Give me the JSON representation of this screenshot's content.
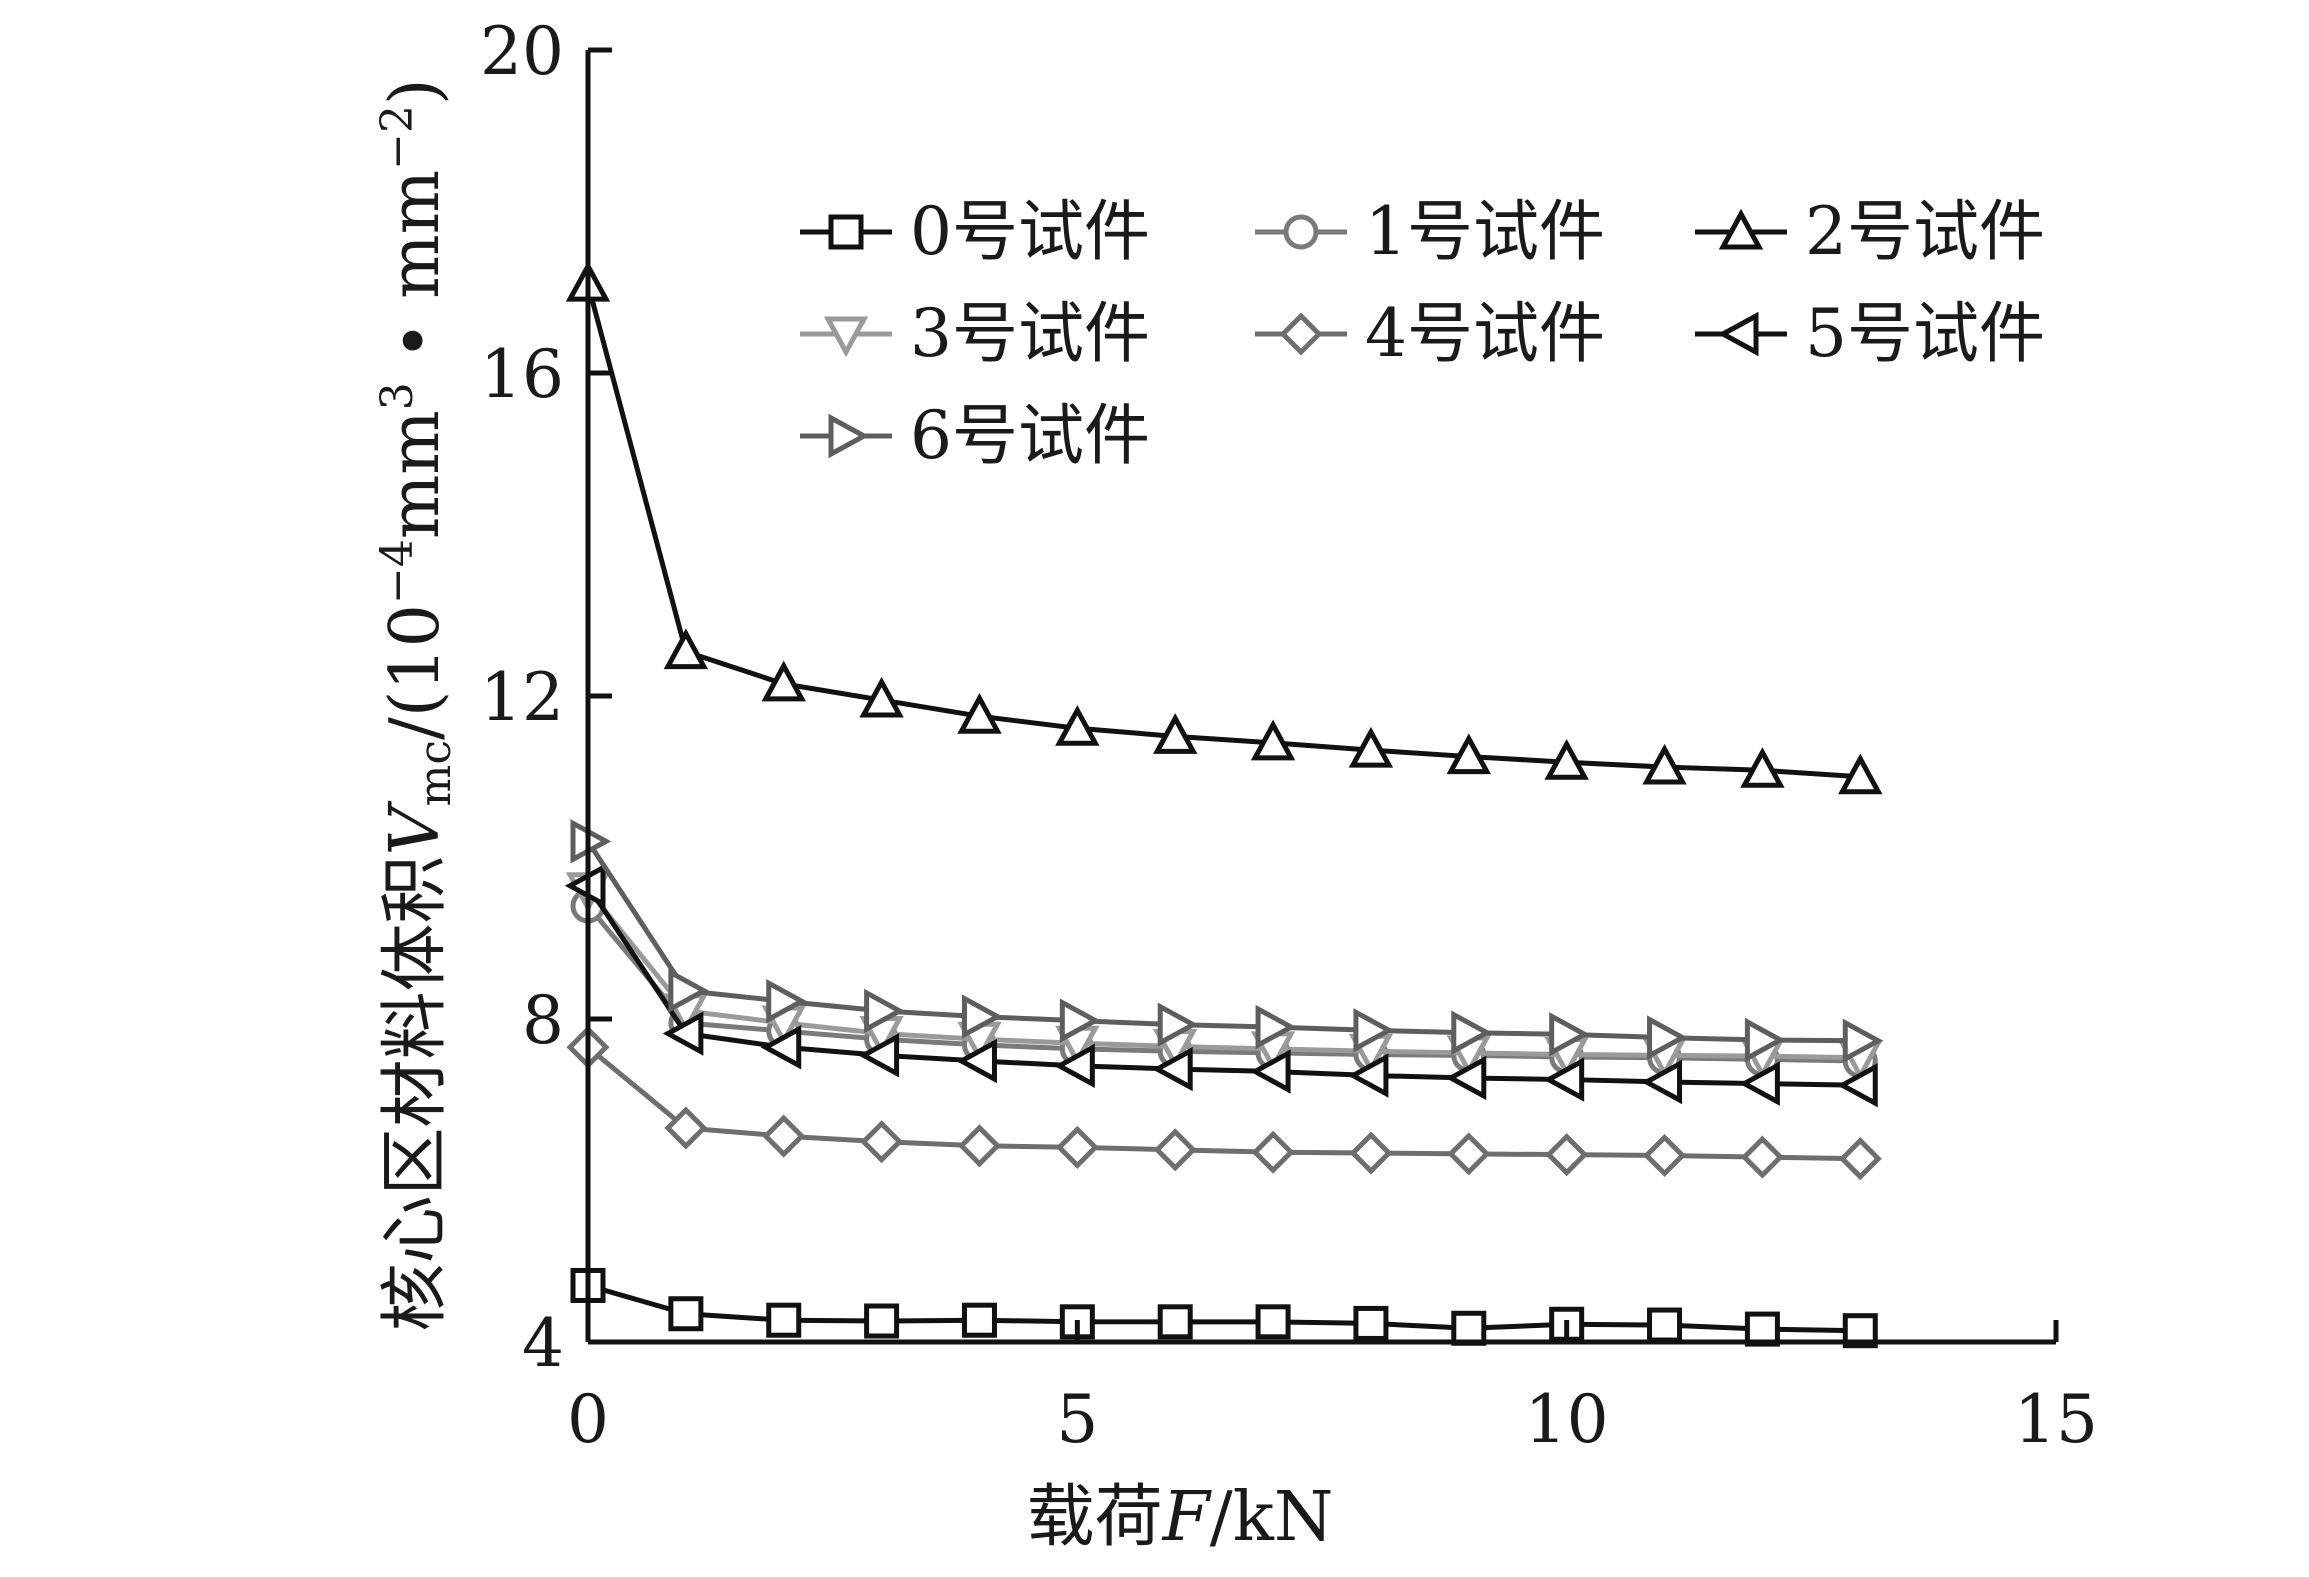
{
  "chart_data": {
    "type": "line",
    "title": "",
    "xlabel": {
      "prefix": "载荷",
      "symbol": "F",
      "unit": "/kN"
    },
    "ylabel": {
      "prefix": "核心区材料体积",
      "symbol": "V",
      "subscript": "mc",
      "unit_open": "/(10",
      "unit_exp1": "−4",
      "unit_mid": "mm",
      "unit_exp2": "3",
      "unit_dot": " • mm",
      "unit_exp3": "−2",
      "unit_close": ")"
    },
    "xlim": [
      0,
      15
    ],
    "ylim": [
      4,
      20
    ],
    "xticks": [
      "0",
      "5",
      "10",
      "15"
    ],
    "yticks": [
      "4",
      "8",
      "12",
      "16",
      "20"
    ],
    "grid": false,
    "legend_position": "top-right",
    "x": [
      0,
      1,
      2,
      3,
      4,
      5,
      6,
      7,
      8,
      9,
      10,
      11,
      12,
      13
    ],
    "series": [
      {
        "name": "0号试件",
        "marker": "square",
        "color": "#111111",
        "values": [
          4.7,
          4.35,
          4.27,
          4.26,
          4.27,
          4.25,
          4.25,
          4.25,
          4.23,
          4.17,
          4.22,
          4.21,
          4.16,
          4.14
        ]
      },
      {
        "name": "1号试件",
        "marker": "circle",
        "color": "#7a7a7a",
        "values": [
          9.4,
          7.95,
          7.85,
          7.75,
          7.68,
          7.63,
          7.6,
          7.58,
          7.56,
          7.55,
          7.53,
          7.52,
          7.5,
          7.48
        ]
      },
      {
        "name": "2号试件",
        "marker": "triangle-up",
        "color": "#111111",
        "values": [
          17.1,
          12.55,
          12.15,
          11.95,
          11.75,
          11.6,
          11.5,
          11.42,
          11.33,
          11.25,
          11.18,
          11.12,
          11.08,
          11.0
        ]
      },
      {
        "name": "3号试件",
        "marker": "triangle-down",
        "color": "#9a9a9a",
        "values": [
          9.6,
          8.1,
          7.95,
          7.82,
          7.75,
          7.7,
          7.66,
          7.63,
          7.6,
          7.58,
          7.56,
          7.55,
          7.54,
          7.52
        ]
      },
      {
        "name": "4号试件",
        "marker": "diamond",
        "color": "#6e6e6e",
        "values": [
          7.65,
          6.65,
          6.55,
          6.48,
          6.43,
          6.41,
          6.38,
          6.35,
          6.34,
          6.33,
          6.32,
          6.31,
          6.29,
          6.27
        ]
      },
      {
        "name": "5号试件",
        "marker": "triangle-left",
        "color": "#111111",
        "values": [
          9.65,
          7.82,
          7.65,
          7.55,
          7.48,
          7.42,
          7.38,
          7.35,
          7.3,
          7.27,
          7.25,
          7.22,
          7.2,
          7.18
        ]
      },
      {
        "name": "6号试件",
        "marker": "triangle-right",
        "color": "#5e5e5e",
        "values": [
          10.2,
          8.35,
          8.22,
          8.1,
          8.03,
          7.98,
          7.93,
          7.9,
          7.86,
          7.83,
          7.81,
          7.77,
          7.74,
          7.73
        ]
      }
    ]
  }
}
